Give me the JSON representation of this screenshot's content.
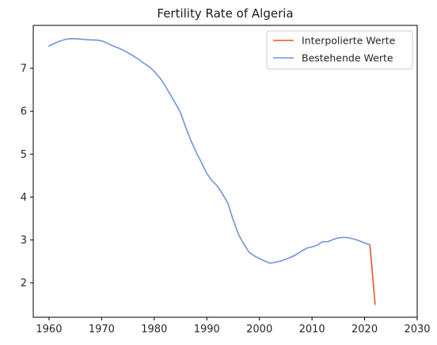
{
  "chart_data": {
    "type": "line",
    "title": "Fertility Rate of Algeria",
    "xlabel": "",
    "ylabel": "",
    "xlim": [
      1957,
      2030
    ],
    "ylim": [
      1.2,
      8.0
    ],
    "x_ticks": [
      1960,
      1970,
      1980,
      1990,
      2000,
      2010,
      2020,
      2030
    ],
    "y_ticks": [
      2,
      3,
      4,
      5,
      6,
      7
    ],
    "grid": false,
    "legend_position": "top-right",
    "colors": {
      "interpolated": "#e8542a",
      "existing": "#6f94d8"
    },
    "series": [
      {
        "name": "Interpolierte Werte",
        "color": "#e8542a",
        "x": [
          2021,
          2022
        ],
        "y": [
          2.89,
          1.5
        ]
      },
      {
        "name": "Bestehende Werte",
        "color": "#6f94d8",
        "x": [
          1960,
          1961,
          1962,
          1963,
          1964,
          1965,
          1966,
          1967,
          1968,
          1969,
          1970,
          1971,
          1972,
          1973,
          1974,
          1975,
          1976,
          1977,
          1978,
          1979,
          1980,
          1981,
          1982,
          1983,
          1984,
          1985,
          1986,
          1987,
          1988,
          1989,
          1990,
          1991,
          1992,
          1993,
          1994,
          1995,
          1996,
          1997,
          1998,
          1999,
          2000,
          2001,
          2002,
          2003,
          2004,
          2005,
          2006,
          2007,
          2008,
          2009,
          2010,
          2011,
          2012,
          2013,
          2014,
          2015,
          2016,
          2017,
          2018,
          2019,
          2020,
          2021
        ],
        "y": [
          7.52,
          7.58,
          7.63,
          7.67,
          7.69,
          7.69,
          7.68,
          7.67,
          7.66,
          7.66,
          7.64,
          7.59,
          7.53,
          7.48,
          7.43,
          7.36,
          7.29,
          7.21,
          7.12,
          7.04,
          6.93,
          6.79,
          6.61,
          6.4,
          6.19,
          5.97,
          5.62,
          5.31,
          5.04,
          4.8,
          4.55,
          4.38,
          4.26,
          4.07,
          3.86,
          3.47,
          3.14,
          2.91,
          2.72,
          2.63,
          2.57,
          2.51,
          2.46,
          2.48,
          2.51,
          2.55,
          2.6,
          2.66,
          2.74,
          2.81,
          2.84,
          2.88,
          2.96,
          2.96,
          3.01,
          3.05,
          3.06,
          3.05,
          3.02,
          2.98,
          2.93,
          2.89
        ]
      }
    ]
  }
}
